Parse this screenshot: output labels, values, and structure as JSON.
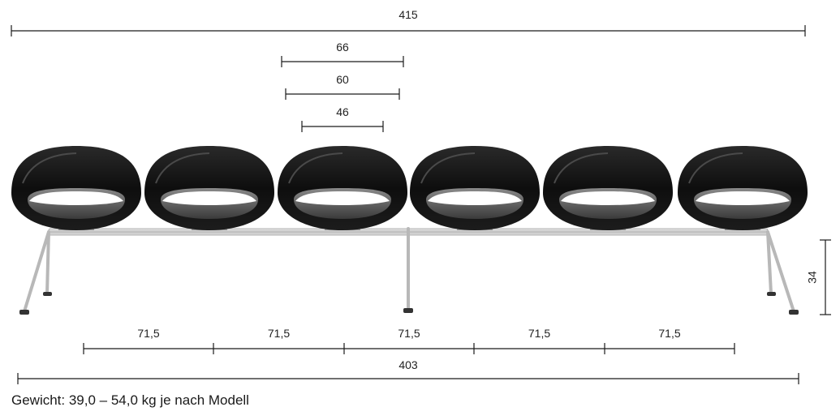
{
  "dimensions": {
    "overall_top": "415",
    "shell_outer": "66",
    "shell_middle": "60",
    "seat_width": "46",
    "height": "34",
    "spacing": [
      "71,5",
      "71,5",
      "71,5",
      "71,5",
      "71,5"
    ],
    "overall_bottom": "403"
  },
  "caption": "Gewicht: 39,0 – 54,0 kg je nach Modell",
  "colors": {
    "shell": "#141414",
    "seat_pad": "#6e6e6e",
    "frame": "#c9c9c9",
    "dimension_line": "#1a1a1a"
  }
}
